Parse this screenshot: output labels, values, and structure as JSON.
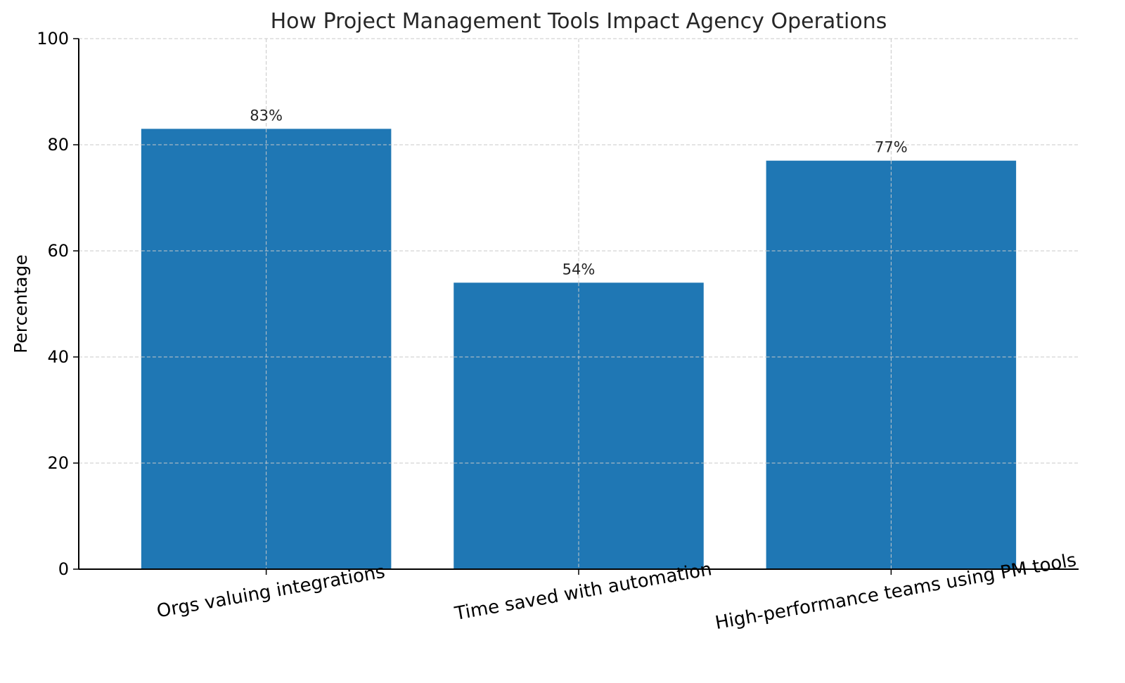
{
  "chart_data": {
    "type": "bar",
    "title": "How Project Management Tools Impact Agency Operations",
    "xlabel": "",
    "ylabel": "Percentage",
    "categories": [
      "Orgs valuing integrations",
      "Time saved with automation",
      "High-performance teams using PM tools"
    ],
    "values": [
      83,
      54,
      77
    ],
    "data_labels": [
      "83%",
      "54%",
      "77%"
    ],
    "ylim": [
      0,
      100
    ],
    "yticks": [
      0,
      20,
      40,
      60,
      80,
      100
    ],
    "grid": true,
    "bar_color": "#1f77b4"
  }
}
